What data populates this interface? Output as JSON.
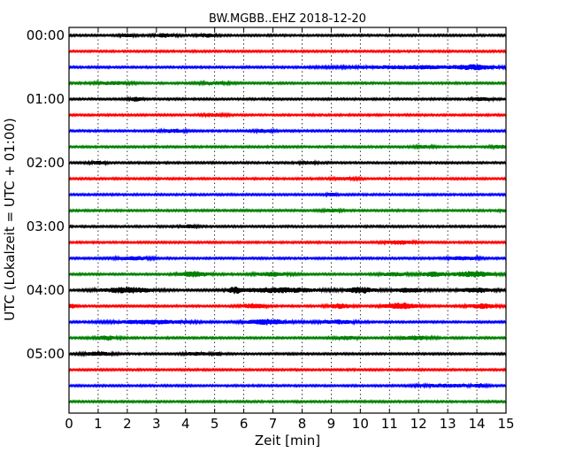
{
  "chart_data": {
    "type": "line",
    "title": "BW.MGBB..EHZ 2018-12-20",
    "xlabel": "Zeit  [min]",
    "ylabel": "UTC (Lokalzeit = UTC + 01:00)",
    "xlim": [
      0,
      15
    ],
    "x_ticks": [
      "0",
      "1",
      "2",
      "3",
      "4",
      "5",
      "6",
      "7",
      "8",
      "9",
      "10",
      "11",
      "12",
      "13",
      "14",
      "15"
    ],
    "y_ticks": [
      "00:00",
      "01:00",
      "02:00",
      "03:00",
      "04:00",
      "05:00"
    ],
    "grid": true,
    "colors": {
      "black": "#000000",
      "red": "#ff0000",
      "blue": "#0000ff",
      "green": "#008000"
    },
    "series": [
      {
        "start": "00:00",
        "color": "black",
        "bursts": [
          [
            3.3,
            0.35,
            1.8
          ],
          [
            4.7,
            0.3,
            1.5
          ],
          [
            2.0,
            0.25,
            1.3
          ]
        ]
      },
      {
        "start": "00:15",
        "color": "red",
        "bursts": []
      },
      {
        "start": "00:30",
        "color": "blue",
        "bursts": [
          [
            12.0,
            2.5,
            1.5
          ],
          [
            14.0,
            0.6,
            1.6
          ]
        ]
      },
      {
        "start": "00:45",
        "color": "green",
        "bursts": [
          [
            1.5,
            0.6,
            1.3
          ],
          [
            5.0,
            0.5,
            1.2
          ]
        ]
      },
      {
        "start": "01:00",
        "color": "black",
        "bursts": [
          [
            2.3,
            0.2,
            2.0
          ],
          [
            14.2,
            0.3,
            1.6
          ]
        ]
      },
      {
        "start": "01:15",
        "color": "red",
        "bursts": [
          [
            5.0,
            0.4,
            1.2
          ]
        ]
      },
      {
        "start": "01:30",
        "color": "blue",
        "bursts": [
          [
            3.6,
            0.4,
            1.6
          ],
          [
            6.7,
            0.3,
            1.3
          ]
        ]
      },
      {
        "start": "01:45",
        "color": "green",
        "bursts": [
          [
            12.2,
            0.3,
            1.3
          ],
          [
            14.8,
            0.3,
            1.3
          ]
        ]
      },
      {
        "start": "02:00",
        "color": "black",
        "bursts": [
          [
            1.0,
            0.3,
            1.4
          ],
          [
            8.2,
            0.3,
            1.3
          ]
        ]
      },
      {
        "start": "02:15",
        "color": "red",
        "bursts": [
          [
            9.5,
            0.4,
            1.3
          ]
        ]
      },
      {
        "start": "02:30",
        "color": "blue",
        "bursts": [
          [
            9.0,
            0.15,
            1.6
          ]
        ]
      },
      {
        "start": "02:45",
        "color": "green",
        "bursts": [
          [
            9.0,
            0.3,
            1.4
          ],
          [
            15.0,
            0.2,
            1.4
          ]
        ]
      },
      {
        "start": "03:00",
        "color": "black",
        "bursts": [
          [
            4.1,
            0.3,
            1.3
          ]
        ]
      },
      {
        "start": "03:15",
        "color": "red",
        "bursts": [
          [
            11.3,
            0.5,
            1.8
          ]
        ]
      },
      {
        "start": "03:30",
        "color": "blue",
        "bursts": [
          [
            2.2,
            0.6,
            1.6
          ],
          [
            13.5,
            0.5,
            1.6
          ]
        ]
      },
      {
        "start": "03:45",
        "color": "green",
        "bursts": [
          [
            4.3,
            0.5,
            2.5
          ],
          [
            7.0,
            0.6,
            1.8
          ],
          [
            11.2,
            0.5,
            1.6
          ],
          [
            12.5,
            0.4,
            2.2
          ],
          [
            13.9,
            0.7,
            2.8
          ]
        ]
      },
      {
        "start": "04:00",
        "color": "black",
        "bursts": [
          [
            2.0,
            0.9,
            2.8
          ],
          [
            5.7,
            0.2,
            2.8
          ],
          [
            7.2,
            1.4,
            2.4
          ],
          [
            10.0,
            0.5,
            3.0
          ],
          [
            11.7,
            0.6,
            1.9
          ],
          [
            14.0,
            0.6,
            2.2
          ]
        ]
      },
      {
        "start": "04:15",
        "color": "red",
        "bursts": [
          [
            0.1,
            0.15,
            2.0
          ],
          [
            6.3,
            0.4,
            2.2
          ],
          [
            9.3,
            0.4,
            2.2
          ],
          [
            11.4,
            0.55,
            3.2
          ],
          [
            14.2,
            0.5,
            2.2
          ]
        ]
      },
      {
        "start": "04:30",
        "color": "blue",
        "bursts": [
          [
            2.8,
            1.3,
            1.8
          ],
          [
            6.8,
            0.7,
            2.6
          ],
          [
            9.2,
            0.6,
            1.8
          ]
        ]
      },
      {
        "start": "04:45",
        "color": "green",
        "bursts": [
          [
            1.3,
            0.4,
            1.9
          ],
          [
            9.5,
            0.4,
            1.5
          ],
          [
            11.9,
            0.5,
            1.8
          ]
        ]
      },
      {
        "start": "05:00",
        "color": "black",
        "bursts": [
          [
            1.0,
            0.5,
            1.8
          ],
          [
            4.4,
            0.4,
            1.5
          ],
          [
            5.1,
            0.1,
            2.0
          ]
        ]
      },
      {
        "start": "05:15",
        "color": "red",
        "bursts": []
      },
      {
        "start": "05:30",
        "color": "blue",
        "bursts": [
          [
            13.0,
            1.0,
            1.3
          ],
          [
            14.1,
            0.2,
            1.5
          ]
        ]
      },
      {
        "start": "05:45",
        "color": "green",
        "bursts": []
      }
    ]
  }
}
